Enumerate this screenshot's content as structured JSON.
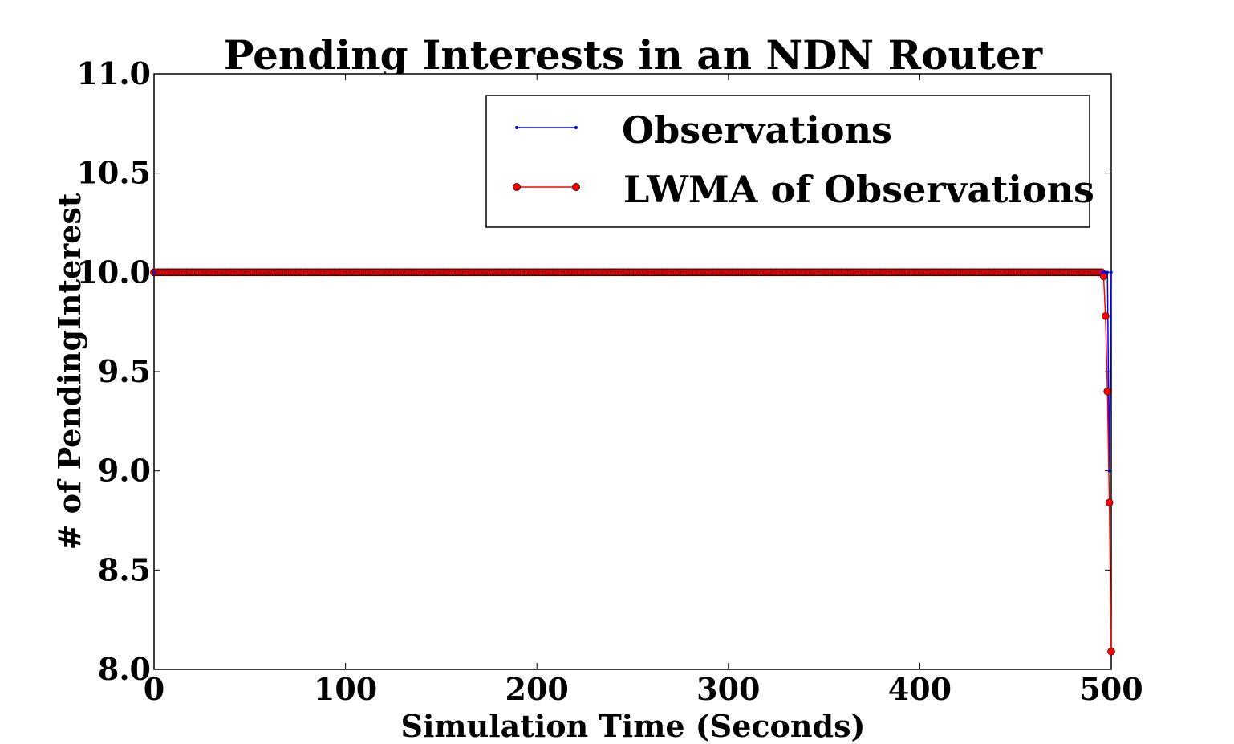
{
  "chart_data": {
    "type": "line",
    "title": "Pending Interests in an NDN Router",
    "xlabel": "Simulation Time (Seconds)",
    "ylabel": "# of PendingInterest",
    "xlim": [
      0,
      500
    ],
    "ylim": [
      8.0,
      11.0
    ],
    "xticks": [
      "0",
      "100",
      "200",
      "300",
      "400",
      "500"
    ],
    "yticks": [
      "8.0",
      "8.5",
      "9.0",
      "9.5",
      "10.0",
      "10.5",
      "11.0"
    ],
    "grid": false,
    "legend_position": "top-right",
    "series": [
      {
        "name": "Observations",
        "color": "#0000ff",
        "marker": "dot",
        "points": [
          [
            0,
            10.0
          ],
          [
            495,
            10.0
          ],
          [
            496,
            10.0
          ],
          [
            497,
            10.0
          ],
          [
            498,
            10.0
          ],
          [
            499,
            9.0
          ],
          [
            500,
            10.0
          ]
        ]
      },
      {
        "name": "LWMA of Observations",
        "color": "#ff0000",
        "marker": "circle",
        "points_constant": {
          "from": 0,
          "to": 495,
          "value": 10.0
        },
        "points_tail": [
          [
            496,
            9.98
          ],
          [
            497,
            9.78
          ],
          [
            498,
            9.4
          ],
          [
            499,
            8.84
          ],
          [
            500,
            8.09
          ]
        ]
      }
    ]
  }
}
